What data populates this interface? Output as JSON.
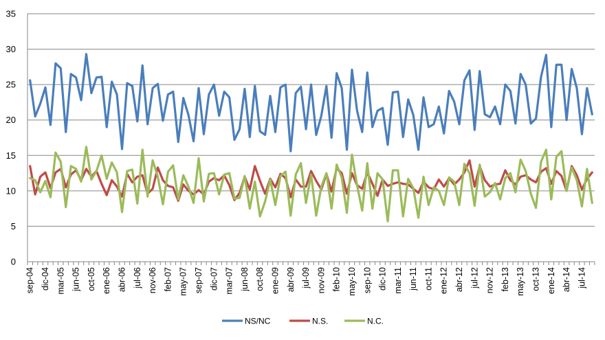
{
  "chart_data": {
    "type": "line",
    "title": "",
    "xlabel": "",
    "ylabel": "",
    "ylim": [
      0,
      35
    ],
    "yticks": [
      0,
      5,
      10,
      15,
      20,
      25,
      30,
      35
    ],
    "grid": "horizontal",
    "legend_position": "bottom",
    "x_tick_labels": [
      "sep-04",
      "dic-04",
      "mar-05",
      "jun-05",
      "oct-05",
      "ene-06",
      "abr-06",
      "jul-06",
      "nov-06",
      "feb-07",
      "may-07",
      "sep-07",
      "dic-07",
      "mar-07",
      "jun-08",
      "oct-08",
      "ene-09",
      "abr-09",
      "jul-09",
      "nov-09",
      "feb-10",
      "may-10",
      "sep-10",
      "dic-10",
      "mar-11",
      "jun-11",
      "oct-11",
      "ene-12",
      "abr-12",
      "jul-12",
      "nov-12",
      "feb-13",
      "may-13",
      "oct-13",
      "ene-14",
      "abr-14",
      "jul-14"
    ],
    "series": [
      {
        "name": "NS/NC",
        "color": "#4a7ebb",
        "values": [
          25.6,
          20.5,
          22.3,
          24.6,
          19.3,
          28.0,
          27.3,
          18.3,
          26.5,
          26.0,
          22.8,
          29.3,
          23.8,
          26.0,
          26.1,
          19.0,
          25.4,
          23.6,
          15.9,
          25.2,
          24.8,
          19.8,
          27.7,
          19.4,
          24.5,
          25.1,
          19.9,
          23.6,
          24.0,
          16.9,
          23.1,
          20.7,
          17.0,
          24.5,
          18.0,
          23.6,
          25.0,
          20.6,
          24.0,
          23.2,
          17.2,
          18.7,
          24.4,
          17.6,
          24.8,
          18.4,
          17.9,
          23.4,
          18.3,
          24.6,
          25.0,
          15.6,
          23.8,
          24.7,
          18.7,
          25.0,
          17.9,
          20.6,
          24.8,
          17.5,
          26.6,
          24.5,
          15.8,
          27.1,
          21.3,
          18.3,
          26.7,
          19.0,
          21.3,
          21.7,
          16.5,
          23.9,
          24.0,
          17.6,
          22.9,
          20.7,
          15.8,
          23.2,
          19.0,
          19.4,
          21.9,
          18.1,
          24.1,
          22.6,
          19.4,
          25.6,
          27.0,
          18.6,
          26.9,
          20.8,
          20.4,
          21.9,
          19.4,
          25.0,
          24.1,
          19.5,
          26.5,
          25.0,
          19.5,
          20.2,
          26.1,
          29.2,
          19.0,
          27.8,
          27.8,
          20.0,
          27.2,
          24.5,
          18.0,
          24.5,
          20.8
        ]
      },
      {
        "name": "N.S.",
        "color": "#be4b48",
        "values": [
          13.5,
          9.5,
          12.0,
          12.6,
          10.4,
          12.6,
          13.1,
          10.5,
          12.3,
          12.9,
          11.5,
          13.1,
          12.0,
          12.8,
          11.0,
          9.4,
          11.5,
          10.6,
          9.2,
          12.4,
          11.2,
          12.0,
          12.2,
          9.6,
          10.3,
          13.3,
          11.5,
          10.7,
          10.5,
          8.6,
          10.9,
          10.0,
          9.5,
          10.1,
          9.5,
          11.3,
          11.8,
          11.5,
          12.2,
          10.8,
          8.7,
          9.7,
          12.0,
          10.2,
          13.5,
          11.4,
          9.6,
          11.7,
          10.5,
          12.4,
          11.8,
          9.1,
          11.6,
          10.6,
          10.6,
          12.8,
          11.4,
          10.2,
          12.4,
          9.9,
          13.2,
          12.5,
          9.6,
          12.5,
          10.8,
          10.3,
          12.6,
          11.0,
          9.3,
          11.6,
          10.7,
          11.0,
          11.2,
          11.0,
          10.9,
          10.3,
          9.7,
          11.3,
          10.5,
          10.2,
          11.6,
          10.6,
          11.8,
          10.9,
          11.6,
          12.6,
          14.3,
          10.6,
          13.5,
          11.5,
          10.6,
          10.9,
          11.0,
          12.9,
          11.5,
          10.9,
          12.0,
          12.2,
          11.6,
          11.2,
          12.7,
          13.2,
          11.0,
          12.8,
          12.1,
          10.0,
          13.5,
          12.2,
          10.2,
          11.7,
          12.6
        ]
      },
      {
        "name": "N.C.",
        "color": "#9bbb59",
        "values": [
          11.8,
          11.5,
          9.8,
          11.4,
          9.1,
          15.4,
          14.1,
          7.7,
          13.5,
          13.1,
          11.3,
          16.2,
          11.6,
          12.8,
          15.0,
          11.7,
          14.0,
          12.6,
          7.0,
          12.8,
          13.0,
          8.2,
          15.8,
          9.2,
          14.3,
          12.0,
          8.1,
          12.7,
          13.6,
          8.8,
          12.2,
          10.6,
          8.3,
          14.6,
          8.5,
          12.4,
          12.5,
          9.5,
          12.3,
          12.5,
          8.9,
          9.0,
          12.1,
          7.5,
          11.3,
          6.4,
          8.5,
          11.6,
          8.0,
          12.1,
          12.7,
          6.5,
          12.3,
          13.9,
          8.3,
          12.3,
          6.5,
          10.6,
          12.5,
          7.5,
          13.7,
          11.9,
          6.9,
          15.1,
          10.8,
          7.2,
          13.9,
          7.5,
          12.5,
          11.6,
          5.7,
          12.9,
          12.9,
          6.4,
          11.7,
          10.4,
          6.2,
          12.0,
          8.0,
          10.5,
          10.0,
          8.0,
          11.9,
          11.3,
          8.0,
          13.8,
          12.5,
          7.9,
          13.7,
          9.2,
          9.8,
          11.1,
          8.8,
          11.8,
          12.5,
          9.8,
          14.4,
          12.8,
          9.6,
          7.6,
          14.1,
          15.8,
          8.8,
          14.8,
          15.6,
          10.0,
          13.3,
          11.5,
          7.8,
          13.1,
          8.3
        ]
      }
    ]
  }
}
